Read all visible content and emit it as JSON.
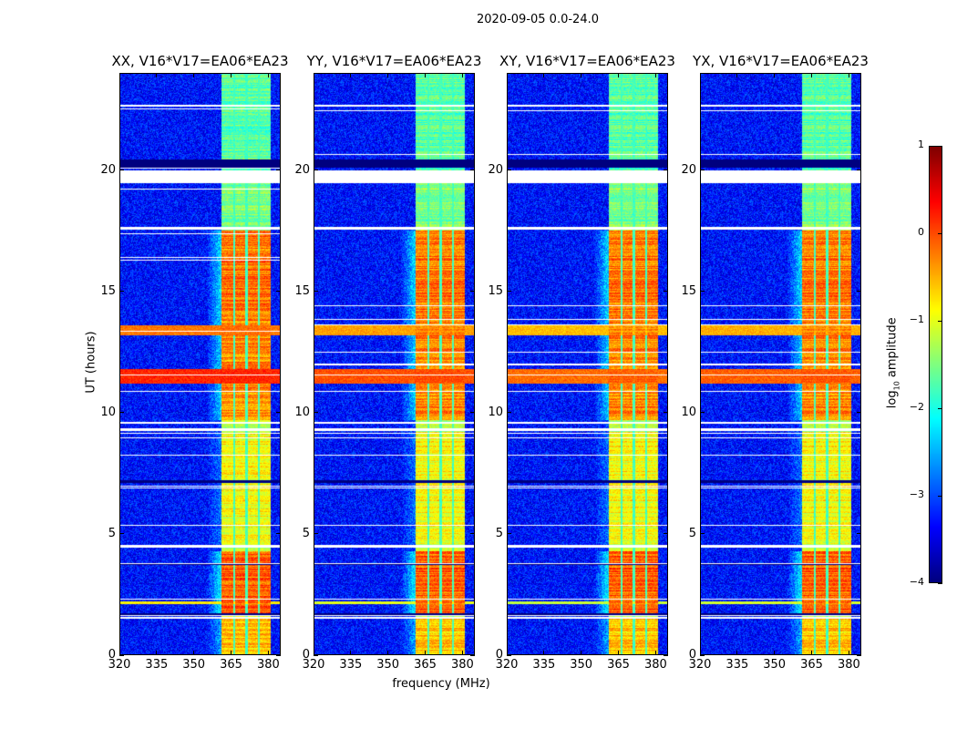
{
  "chart_data": {
    "type": "heatmap",
    "title": "2020-09-05 0.0-24.0",
    "xlabel": "frequency (MHz)",
    "ylabel": "UT (hours)",
    "xlim": [
      320,
      385
    ],
    "ylim": [
      0,
      24
    ],
    "xticks": [
      "320",
      "335",
      "350",
      "365",
      "380"
    ],
    "xtick_values": [
      320,
      335,
      350,
      365,
      380
    ],
    "yticks": [
      "0",
      "5",
      "10",
      "15",
      "20"
    ],
    "ytick_values": [
      0,
      5,
      10,
      15,
      20
    ],
    "colormap": "jet",
    "colorbar": {
      "label_main": "log",
      "label_sub": "10",
      "label_rest": " amplitude",
      "clim": [
        -4,
        1
      ],
      "ticks": [
        "1",
        "0",
        "−1",
        "−2",
        "−3",
        "−4"
      ],
      "tick_values": [
        1,
        0,
        -1,
        -2,
        -3,
        -4
      ]
    },
    "panels": [
      {
        "title": "XX, V16*V17=EA06*EA23",
        "rfi_row_strength": 1.0
      },
      {
        "title": "YY, V16*V17=EA06*EA23",
        "rfi_row_strength": 0.7
      },
      {
        "title": "XY, V16*V17=EA06*EA23",
        "rfi_row_strength": 0.5
      },
      {
        "title": "YX, V16*V17=EA06*EA23",
        "rfi_row_strength": 0.6
      }
    ],
    "background_log_amplitude": -3.3,
    "band_mhz": [
      361,
      381
    ],
    "band_subband_gaps_mhz": [
      366.3,
      371.2,
      376.1
    ],
    "band_levels": [
      {
        "t": [
          0.0,
          1.5
        ],
        "value": -0.6
      },
      {
        "t": [
          1.7,
          4.3
        ],
        "value": -0.1
      },
      {
        "t": [
          4.6,
          9.2
        ],
        "value": -0.9
      },
      {
        "t": [
          9.7,
          13.8
        ],
        "value": -0.3
      },
      {
        "t": [
          13.8,
          17.5
        ],
        "value": -0.2
      },
      {
        "t": [
          17.6,
          19.4
        ],
        "value": -1.5
      },
      {
        "t": [
          19.4,
          24.0
        ],
        "value": -1.7
      }
    ],
    "broadband_rfi_rows": [
      {
        "t": [
          11.2,
          11.8
        ],
        "value": 0.2
      },
      {
        "t": [
          13.2,
          13.6
        ],
        "value": -0.2
      },
      {
        "t": [
          2.1,
          2.2
        ],
        "value": -0.8
      }
    ],
    "flagged_rows_hours": [
      [
        1.5,
        1.58
      ],
      [
        4.45,
        4.55
      ],
      [
        9.25,
        9.35
      ],
      [
        9.55,
        9.62
      ],
      [
        17.55,
        17.65
      ],
      [
        19.45,
        20.0
      ],
      [
        22.6,
        22.68
      ]
    ],
    "low_rows_hours": [
      [
        1.6,
        1.72
      ],
      [
        20.1,
        20.45
      ],
      [
        7.1,
        7.2
      ],
      [
        3.7,
        3.8
      ]
    ]
  }
}
